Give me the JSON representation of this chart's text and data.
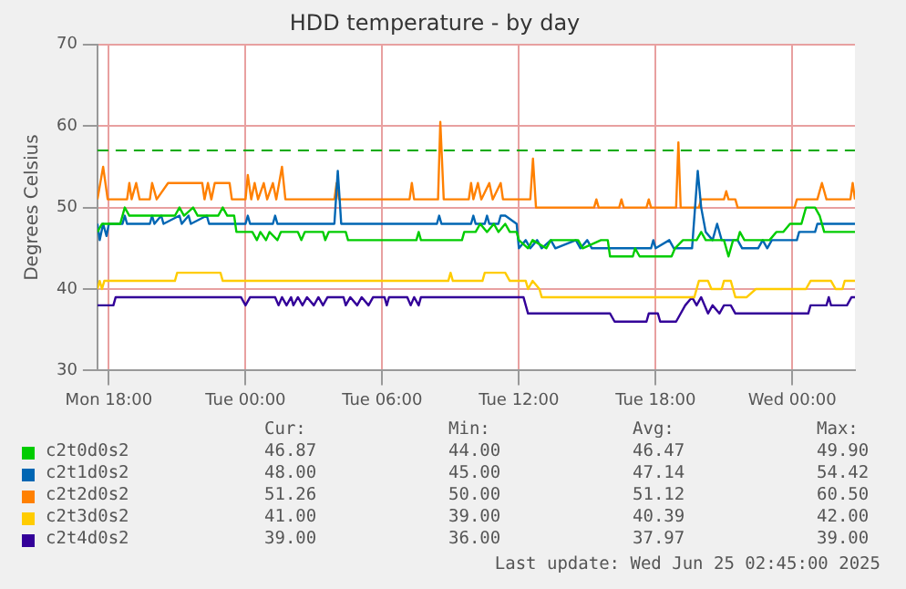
{
  "chart_data": {
    "type": "line",
    "title": "HDD temperature - by day",
    "ylabel": "Degrees Celsius",
    "xlim": [
      "2025-06-23T17:30",
      "2025-06-25T02:45"
    ],
    "xticks": [
      {
        "value": "2025-06-23T18:00",
        "label": "Mon 18:00"
      },
      {
        "value": "2025-06-24T00:00",
        "label": "Tue 00:00"
      },
      {
        "value": "2025-06-24T06:00",
        "label": "Tue 06:00"
      },
      {
        "value": "2025-06-24T12:00",
        "label": "Tue 12:00"
      },
      {
        "value": "2025-06-24T18:00",
        "label": "Tue 18:00"
      },
      {
        "value": "2025-06-25T00:00",
        "label": "Wed 00:00"
      }
    ],
    "ylim": [
      30,
      70
    ],
    "yticks": [
      30,
      40,
      50,
      60,
      70
    ],
    "grid": true,
    "legend": "bottom",
    "marker": "none",
    "line_style": "solid",
    "ref_lines": [
      {
        "axis": "y",
        "value": 57,
        "color": "#00aa00",
        "line_style": "dashed"
      }
    ],
    "series": [
      {
        "name": "c2t0d0s2",
        "color": "#00cc00",
        "x": [
          "2025-06-23T17:30",
          "2025-06-23T17:42",
          "2025-06-23T18:30",
          "2025-06-23T18:42",
          "2025-06-23T18:54",
          "2025-06-23T20:54",
          "2025-06-23T21:06",
          "2025-06-23T21:18",
          "2025-06-23T21:42",
          "2025-06-23T21:54",
          "2025-06-23T22:48",
          "2025-06-23T23:00",
          "2025-06-23T23:12",
          "2025-06-23T23:30",
          "2025-06-23T23:36",
          "2025-06-24T00:18",
          "2025-06-24T00:30",
          "2025-06-24T00:39",
          "2025-06-24T00:54",
          "2025-06-24T01:03",
          "2025-06-24T01:24",
          "2025-06-24T01:33",
          "2025-06-24T02:18",
          "2025-06-24T02:27",
          "2025-06-24T02:36",
          "2025-06-24T03:24",
          "2025-06-24T03:30",
          "2025-06-24T03:39",
          "2025-06-24T04:24",
          "2025-06-24T04:30",
          "2025-06-24T07:30",
          "2025-06-24T07:36",
          "2025-06-24T07:42",
          "2025-06-24T09:30",
          "2025-06-24T09:36",
          "2025-06-24T10:06",
          "2025-06-24T10:18",
          "2025-06-24T10:36",
          "2025-06-24T10:54",
          "2025-06-24T11:06",
          "2025-06-24T11:24",
          "2025-06-24T11:36",
          "2025-06-24T11:54",
          "2025-06-24T12:00",
          "2025-06-24T12:24",
          "2025-06-24T12:36",
          "2025-06-24T13:12",
          "2025-06-24T13:24",
          "2025-06-24T14:36",
          "2025-06-24T14:48",
          "2025-06-24T15:36",
          "2025-06-24T15:54",
          "2025-06-24T16:00",
          "2025-06-24T17:00",
          "2025-06-24T17:06",
          "2025-06-24T17:18",
          "2025-06-24T18:42",
          "2025-06-24T18:51",
          "2025-06-24T19:12",
          "2025-06-24T19:48",
          "2025-06-24T20:00",
          "2025-06-24T20:12",
          "2025-06-24T21:00",
          "2025-06-24T21:12",
          "2025-06-24T21:24",
          "2025-06-24T21:36",
          "2025-06-24T21:42",
          "2025-06-24T21:54",
          "2025-06-24T23:00",
          "2025-06-24T23:18",
          "2025-06-24T23:36",
          "2025-06-24T23:54",
          "2025-06-25T00:24",
          "2025-06-25T00:36",
          "2025-06-25T01:00",
          "2025-06-25T01:12",
          "2025-06-25T01:24",
          "2025-06-25T02:45"
        ],
        "values": [
          47,
          48,
          48,
          50,
          49,
          49,
          50,
          49,
          50,
          49,
          49,
          50,
          49,
          49,
          47,
          47,
          46,
          47,
          46,
          47,
          46,
          47,
          47,
          46,
          47,
          47,
          46,
          47,
          47,
          46,
          46,
          47,
          46,
          46,
          47,
          47,
          48,
          47,
          48,
          47,
          48,
          47,
          47,
          46,
          45,
          46,
          45,
          46,
          46,
          45,
          46,
          46,
          44,
          44,
          45,
          44,
          44,
          45,
          46,
          46,
          47,
          46,
          46,
          44,
          46,
          46,
          47,
          46,
          46,
          47,
          47,
          48,
          48,
          50,
          50,
          49,
          47,
          47
        ]
      },
      {
        "name": "c2t1d0s2",
        "color": "#0066b3",
        "x": [
          "2025-06-23T17:30",
          "2025-06-23T17:36",
          "2025-06-23T17:45",
          "2025-06-23T17:54",
          "2025-06-23T18:00",
          "2025-06-23T18:36",
          "2025-06-23T18:42",
          "2025-06-23T18:48",
          "2025-06-23T19:48",
          "2025-06-23T19:54",
          "2025-06-23T20:00",
          "2025-06-23T20:18",
          "2025-06-23T20:24",
          "2025-06-23T21:06",
          "2025-06-23T21:12",
          "2025-06-23T21:30",
          "2025-06-23T21:36",
          "2025-06-23T22:18",
          "2025-06-23T22:24",
          "2025-06-24T00:00",
          "2025-06-24T00:06",
          "2025-06-24T00:12",
          "2025-06-24T01:12",
          "2025-06-24T01:18",
          "2025-06-24T01:24",
          "2025-06-24T03:54",
          "2025-06-24T04:03",
          "2025-06-24T04:12",
          "2025-06-24T08:24",
          "2025-06-24T08:30",
          "2025-06-24T08:36",
          "2025-06-24T09:54",
          "2025-06-24T10:00",
          "2025-06-24T10:06",
          "2025-06-24T10:30",
          "2025-06-24T10:36",
          "2025-06-24T10:42",
          "2025-06-24T11:06",
          "2025-06-24T11:12",
          "2025-06-24T11:24",
          "2025-06-24T11:54",
          "2025-06-24T12:00",
          "2025-06-24T12:18",
          "2025-06-24T12:30",
          "2025-06-24T12:48",
          "2025-06-24T13:00",
          "2025-06-24T13:24",
          "2025-06-24T13:36",
          "2025-06-24T14:30",
          "2025-06-24T14:42",
          "2025-06-24T15:00",
          "2025-06-24T15:12",
          "2025-06-24T17:48",
          "2025-06-24T17:54",
          "2025-06-24T18:00",
          "2025-06-24T18:36",
          "2025-06-24T18:48",
          "2025-06-24T19:36",
          "2025-06-24T19:51",
          "2025-06-24T20:00",
          "2025-06-24T20:12",
          "2025-06-24T20:30",
          "2025-06-24T20:42",
          "2025-06-24T20:54",
          "2025-06-24T21:18",
          "2025-06-24T21:36",
          "2025-06-24T21:48",
          "2025-06-24T22:30",
          "2025-06-24T22:42",
          "2025-06-24T22:54",
          "2025-06-24T23:06",
          "2025-06-24T23:18",
          "2025-06-25T00:12",
          "2025-06-25T00:18",
          "2025-06-25T01:00",
          "2025-06-25T01:06",
          "2025-06-25T02:45"
        ],
        "values": [
          48,
          46,
          48,
          46.5,
          48,
          48,
          49,
          48,
          48,
          49,
          48,
          49,
          48,
          49,
          48,
          49,
          48,
          49,
          48,
          48,
          49,
          48,
          48,
          49,
          48,
          48,
          54.5,
          48,
          48,
          49,
          48,
          48,
          49,
          48,
          48,
          49,
          48,
          48,
          49,
          49,
          48,
          45,
          46,
          45,
          46,
          45,
          46,
          45,
          46,
          45,
          46,
          45,
          45,
          46,
          45,
          46,
          45,
          45,
          54.5,
          50,
          47,
          46,
          48,
          46,
          46,
          46,
          45,
          45,
          46,
          45,
          46,
          46,
          46,
          47,
          47,
          48,
          48
        ]
      },
      {
        "name": "c2t2d0s2",
        "color": "#ff8000",
        "x": [
          "2025-06-23T17:30",
          "2025-06-23T17:45",
          "2025-06-23T17:57",
          "2025-06-23T18:48",
          "2025-06-23T18:54",
          "2025-06-23T19:00",
          "2025-06-23T19:12",
          "2025-06-23T19:21",
          "2025-06-23T19:48",
          "2025-06-23T19:54",
          "2025-06-23T20:06",
          "2025-06-23T20:36",
          "2025-06-23T22:06",
          "2025-06-23T22:12",
          "2025-06-23T22:21",
          "2025-06-23T22:30",
          "2025-06-23T22:39",
          "2025-06-23T23:18",
          "2025-06-23T23:24",
          "2025-06-24T00:00",
          "2025-06-24T00:06",
          "2025-06-24T00:15",
          "2025-06-24T00:24",
          "2025-06-24T00:33",
          "2025-06-24T00:48",
          "2025-06-24T00:57",
          "2025-06-24T01:12",
          "2025-06-24T01:21",
          "2025-06-24T01:36",
          "2025-06-24T01:45",
          "2025-06-24T03:54",
          "2025-06-24T04:00",
          "2025-06-24T04:06",
          "2025-06-24T07:12",
          "2025-06-24T07:18",
          "2025-06-24T07:24",
          "2025-06-24T08:27",
          "2025-06-24T08:33",
          "2025-06-24T08:42",
          "2025-06-24T09:48",
          "2025-06-24T09:54",
          "2025-06-24T10:00",
          "2025-06-24T10:12",
          "2025-06-24T10:21",
          "2025-06-24T10:42",
          "2025-06-24T10:51",
          "2025-06-24T11:12",
          "2025-06-24T11:18",
          "2025-06-24T12:30",
          "2025-06-24T12:37",
          "2025-06-24T12:45",
          "2025-06-24T15:18",
          "2025-06-24T15:24",
          "2025-06-24T15:30",
          "2025-06-24T16:24",
          "2025-06-24T16:30",
          "2025-06-24T16:36",
          "2025-06-24T17:36",
          "2025-06-24T17:42",
          "2025-06-24T17:48",
          "2025-06-24T18:54",
          "2025-06-24T19:00",
          "2025-06-24T19:06",
          "2025-06-24T19:54",
          "2025-06-24T20:00",
          "2025-06-24T21:00",
          "2025-06-24T21:06",
          "2025-06-24T21:12",
          "2025-06-24T21:30",
          "2025-06-24T21:36",
          "2025-06-25T00:06",
          "2025-06-25T00:12",
          "2025-06-25T01:06",
          "2025-06-25T01:18",
          "2025-06-25T01:30",
          "2025-06-25T02:33",
          "2025-06-25T02:39",
          "2025-06-25T02:45"
        ],
        "values": [
          51,
          55,
          51,
          51,
          53,
          51,
          53,
          51,
          51,
          53,
          51,
          53,
          53,
          51,
          53,
          51,
          53,
          53,
          51,
          51,
          54,
          51,
          53,
          51,
          53,
          51,
          53,
          51,
          55,
          51,
          51,
          53,
          51,
          51,
          53,
          51,
          51,
          60.5,
          51,
          51,
          53,
          51,
          53,
          51,
          53,
          51,
          53,
          51,
          51,
          56,
          50,
          50,
          51,
          50,
          50,
          51,
          50,
          50,
          51,
          50,
          50,
          58,
          50,
          50,
          51,
          51,
          52,
          51,
          51,
          50,
          50,
          51,
          51,
          53,
          51,
          51,
          53,
          51
        ]
      },
      {
        "name": "c2t3d0s2",
        "color": "#ffcc00",
        "x": [
          "2025-06-23T17:30",
          "2025-06-23T17:36",
          "2025-06-23T17:42",
          "2025-06-23T17:48",
          "2025-06-23T20:54",
          "2025-06-23T21:00",
          "2025-06-23T22:54",
          "2025-06-23T23:00",
          "2025-06-24T08:54",
          "2025-06-24T09:00",
          "2025-06-24T09:06",
          "2025-06-24T10:24",
          "2025-06-24T10:30",
          "2025-06-24T11:24",
          "2025-06-24T11:36",
          "2025-06-24T12:18",
          "2025-06-24T12:24",
          "2025-06-24T12:36",
          "2025-06-24T12:54",
          "2025-06-24T13:00",
          "2025-06-24T19:42",
          "2025-06-24T19:54",
          "2025-06-24T20:18",
          "2025-06-24T20:27",
          "2025-06-24T20:54",
          "2025-06-24T21:00",
          "2025-06-24T21:18",
          "2025-06-24T21:30",
          "2025-06-24T22:00",
          "2025-06-24T22:24",
          "2025-06-25T00:36",
          "2025-06-25T00:48",
          "2025-06-25T01:42",
          "2025-06-25T01:54",
          "2025-06-25T02:12",
          "2025-06-25T02:18",
          "2025-06-25T02:45"
        ],
        "values": [
          40,
          41,
          40,
          41,
          41,
          42,
          42,
          41,
          41,
          42,
          41,
          41,
          42,
          42,
          41,
          41,
          40,
          41,
          40,
          39,
          39,
          41,
          41,
          40,
          40,
          41,
          41,
          39,
          39,
          40,
          40,
          41,
          41,
          40,
          40,
          41,
          41
        ]
      },
      {
        "name": "c2t4d0s2",
        "color": "#330099",
        "x": [
          "2025-06-23T17:30",
          "2025-06-23T18:12",
          "2025-06-23T18:18",
          "2025-06-23T23:48",
          "2025-06-24T00:00",
          "2025-06-24T00:12",
          "2025-06-24T01:18",
          "2025-06-24T01:27",
          "2025-06-24T01:36",
          "2025-06-24T01:48",
          "2025-06-24T02:00",
          "2025-06-24T02:06",
          "2025-06-24T02:18",
          "2025-06-24T02:30",
          "2025-06-24T02:42",
          "2025-06-24T03:00",
          "2025-06-24T03:12",
          "2025-06-24T03:24",
          "2025-06-24T03:36",
          "2025-06-24T04:18",
          "2025-06-24T04:24",
          "2025-06-24T04:36",
          "2025-06-24T04:54",
          "2025-06-24T05:06",
          "2025-06-24T05:24",
          "2025-06-24T05:36",
          "2025-06-24T06:06",
          "2025-06-24T06:12",
          "2025-06-24T06:18",
          "2025-06-24T07:06",
          "2025-06-24T07:15",
          "2025-06-24T07:24",
          "2025-06-24T07:36",
          "2025-06-24T07:42",
          "2025-06-24T12:12",
          "2025-06-24T12:24",
          "2025-06-24T16:00",
          "2025-06-24T16:12",
          "2025-06-24T17:36",
          "2025-06-24T17:42",
          "2025-06-24T18:06",
          "2025-06-24T18:12",
          "2025-06-24T18:54",
          "2025-06-24T19:18",
          "2025-06-24T19:36",
          "2025-06-24T19:48",
          "2025-06-24T20:00",
          "2025-06-24T20:18",
          "2025-06-24T20:30",
          "2025-06-24T20:48",
          "2025-06-24T21:00",
          "2025-06-24T21:18",
          "2025-06-24T21:30",
          "2025-06-25T00:42",
          "2025-06-25T00:48",
          "2025-06-25T01:30",
          "2025-06-25T01:36",
          "2025-06-25T01:42",
          "2025-06-25T02:24",
          "2025-06-25T02:36",
          "2025-06-25T02:45"
        ],
        "values": [
          38,
          38,
          39,
          39,
          38,
          39,
          39,
          38,
          39,
          38,
          39,
          38,
          39,
          38,
          39,
          38,
          39,
          38,
          39,
          39,
          38,
          39,
          38,
          39,
          38,
          39,
          39,
          38,
          39,
          39,
          38,
          39,
          38,
          39,
          39,
          37,
          37,
          36,
          36,
          37,
          37,
          36,
          36,
          38,
          39,
          38,
          39,
          37,
          38,
          37,
          38,
          38,
          37,
          37,
          38,
          38,
          39,
          38,
          38,
          39,
          39
        ]
      }
    ],
    "annotations": [
      "Cur:",
      "Min:",
      "Avg:",
      "Max:",
      "46.87",
      "44.00",
      "46.47",
      "49.90",
      "48.00",
      "45.00",
      "47.14",
      "54.42",
      "51.26",
      "50.00",
      "51.12",
      "60.50",
      "41.00",
      "39.00",
      "40.39",
      "42.00",
      "39.00",
      "36.00",
      "37.97",
      "39.00",
      "Last update: Wed Jun 25 02:45:00 2025"
    ]
  }
}
